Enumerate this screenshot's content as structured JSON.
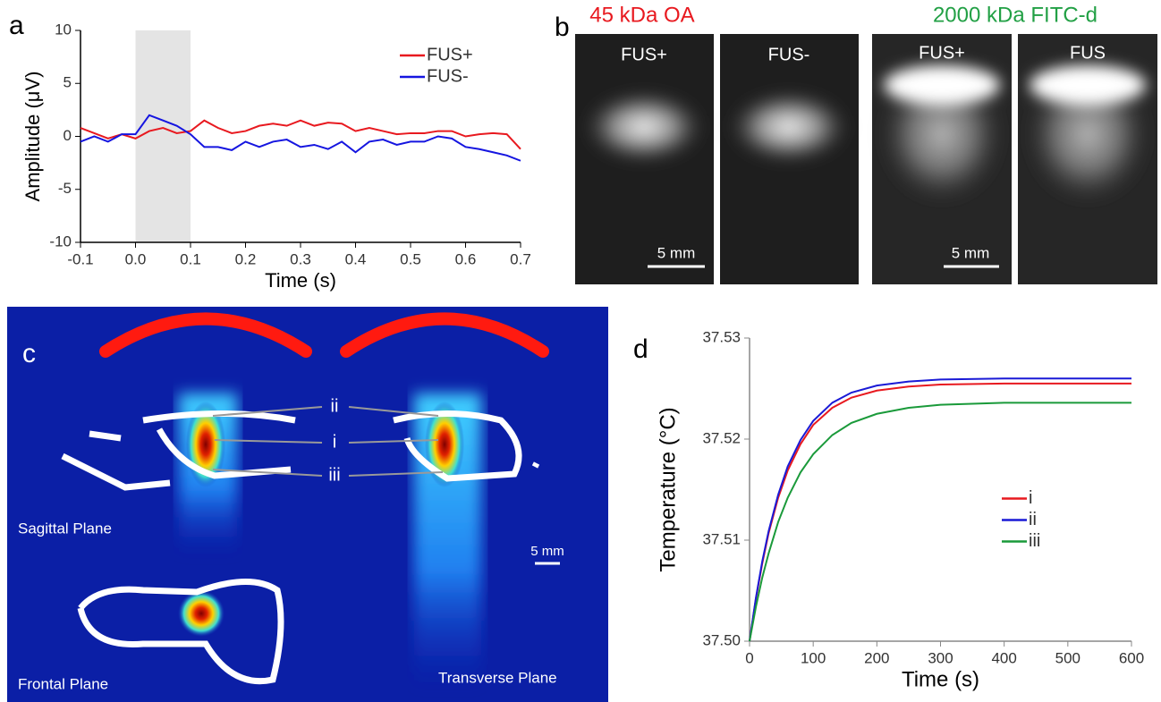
{
  "chart_data": [
    {
      "type": "line",
      "panel_label": "a",
      "xlabel": "Time (s)",
      "ylabel": "Amplitude (μV)",
      "x": [
        -0.1,
        -0.075,
        -0.05,
        -0.025,
        0,
        0.025,
        0.05,
        0.075,
        0.1,
        0.125,
        0.15,
        0.175,
        0.2,
        0.225,
        0.25,
        0.275,
        0.3,
        0.325,
        0.35,
        0.375,
        0.4,
        0.425,
        0.45,
        0.475,
        0.5,
        0.525,
        0.55,
        0.575,
        0.6,
        0.625,
        0.65,
        0.675,
        0.7
      ],
      "xlim": [
        -0.1,
        0.7
      ],
      "xticks": [
        -0.1,
        {
          "value": 0,
          "label": "0.0"
        },
        0.1,
        0.2,
        0.3,
        0.4,
        0.5,
        0.6,
        0.7
      ],
      "ylim": [
        -10,
        10
      ],
      "yticks": [
        10,
        5,
        0,
        -5,
        -10
      ],
      "highlight_x": [
        0,
        0.1
      ],
      "legend": "upper right",
      "series": [
        {
          "name": "FUS+",
          "color": "#e8191f",
          "values": [
            0.8,
            0.3,
            -0.2,
            0.2,
            -0.2,
            0.5,
            0.8,
            0.3,
            0.5,
            1.5,
            0.8,
            0.3,
            0.5,
            1.0,
            1.2,
            1.0,
            1.5,
            1.0,
            1.3,
            1.2,
            0.5,
            0.8,
            0.5,
            0.2,
            0.3,
            0.3,
            0.5,
            0.5,
            0,
            0.2,
            0.3,
            0.2,
            -1.2
          ]
        },
        {
          "name": "FUS-",
          "color": "#1515e0",
          "values": [
            -0.5,
            0,
            -0.5,
            0.2,
            0.2,
            2.0,
            1.5,
            1.0,
            0.2,
            -1.0,
            -1.0,
            -1.3,
            -0.5,
            -1.0,
            -0.5,
            -0.3,
            -1.0,
            -0.8,
            -1.2,
            -0.5,
            -1.5,
            -0.5,
            -0.3,
            -0.8,
            -0.5,
            -0.5,
            0,
            -0.2,
            -1.0,
            -1.2,
            -1.5,
            -1.8,
            -2.3
          ]
        }
      ]
    },
    {
      "type": "line",
      "panel_label": "d",
      "xlabel": "Time (s)",
      "ylabel": "Temperature (°C)",
      "x": [
        0,
        10,
        20,
        30,
        45,
        60,
        80,
        100,
        130,
        160,
        200,
        250,
        300,
        400,
        500,
        600
      ],
      "xlim": [
        0,
        600
      ],
      "xticks": [
        0,
        100,
        200,
        300,
        400,
        500,
        600
      ],
      "ylim": [
        37.5,
        37.53
      ],
      "yticks": [
        {
          "value": 37.5,
          "label": "37.50"
        },
        37.51,
        37.52,
        37.53
      ],
      "legend": "center right",
      "series": [
        {
          "name": "i",
          "color": "#e8191f",
          "values": [
            37.5,
            37.5042,
            37.5077,
            37.5107,
            37.5142,
            37.5169,
            37.5195,
            37.5214,
            37.5231,
            37.5241,
            37.5248,
            37.5252,
            37.5254,
            37.5255,
            37.5255,
            37.5255
          ]
        },
        {
          "name": "ii",
          "color": "#1a1ad6",
          "values": [
            37.5,
            37.5043,
            37.5079,
            37.5109,
            37.5145,
            37.5173,
            37.5199,
            37.5218,
            37.5236,
            37.5246,
            37.5253,
            37.5257,
            37.5259,
            37.526,
            37.526,
            37.526
          ]
        },
        {
          "name": "iii",
          "color": "#1a9a3a",
          "values": [
            37.5,
            37.5034,
            37.5063,
            37.5087,
            37.5118,
            37.5142,
            37.5167,
            37.5185,
            37.5204,
            37.5216,
            37.5225,
            37.5231,
            37.5234,
            37.5236,
            37.5236,
            37.5236
          ]
        }
      ]
    }
  ],
  "gel_panel": {
    "panel_label": "b",
    "left_title": "45 kDa OA",
    "right_title": "2000 kDa FITC-d",
    "lanes": [
      "FUS+",
      "FUS-",
      "FUS+",
      "FUS"
    ],
    "scale_bars": [
      "5 mm",
      "5 mm"
    ]
  },
  "simulation_panel": {
    "panel_label": "c",
    "points": [
      "ii",
      "i",
      "iii"
    ],
    "planes": [
      "Sagittal Plane",
      "Frontal Plane",
      "Transverse Plane"
    ],
    "scale_bar": "5 mm"
  }
}
